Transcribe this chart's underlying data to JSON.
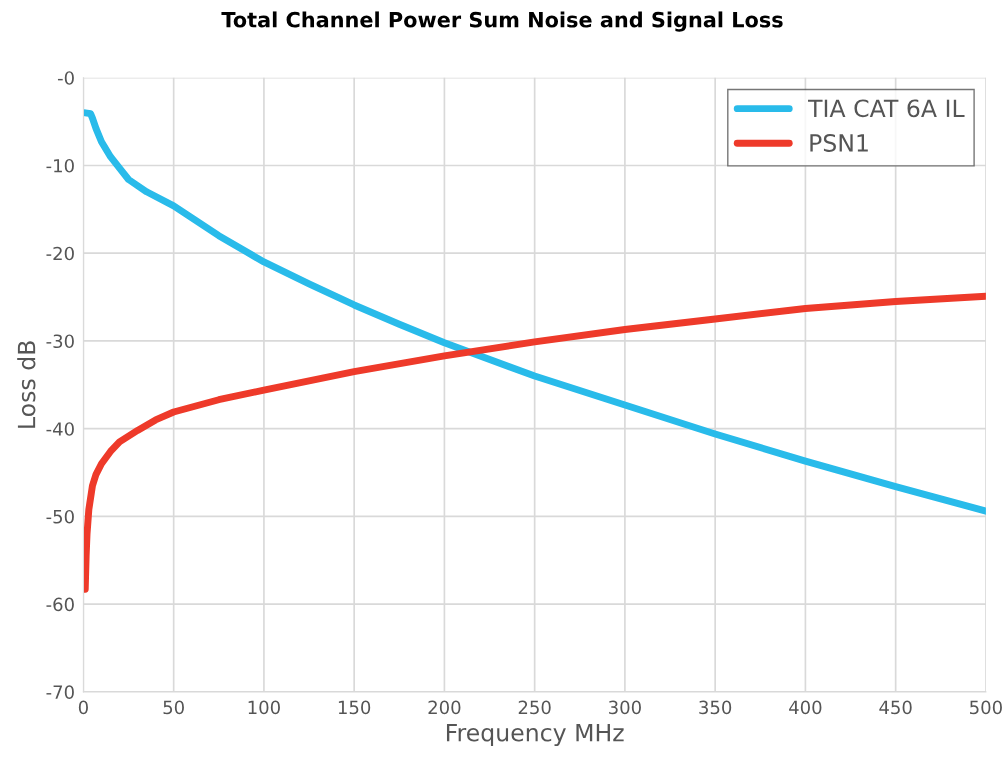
{
  "chart_data": {
    "type": "line",
    "title": "Total Channel Power Sum Noise and Signal Loss",
    "xlabel": "Frequency MHz",
    "ylabel": "Loss dB",
    "series": [
      {
        "name": "TIA CAT 6A IL",
        "color": "#29bbea",
        "x": [
          1,
          4,
          5,
          7,
          10,
          15,
          20,
          25,
          35,
          50,
          75,
          100,
          125,
          150,
          175,
          200,
          250,
          300,
          350,
          400,
          450,
          500
        ],
        "values": [
          -4.0,
          -4.1,
          -4.6,
          -5.8,
          -7.3,
          -9.0,
          -10.3,
          -11.6,
          -13.0,
          -14.6,
          -18.0,
          -21.0,
          -23.5,
          -25.9,
          -28.1,
          -30.2,
          -34.0,
          -37.3,
          -40.6,
          -43.7,
          -46.6,
          -49.4
        ]
      },
      {
        "name": "PSN1",
        "color": "#ee3a2a",
        "x": [
          1,
          1.5,
          2,
          3,
          5,
          7,
          10,
          15,
          20,
          30,
          40,
          50,
          75,
          100,
          150,
          200,
          250,
          300,
          350,
          400,
          450,
          500
        ],
        "values": [
          -58.3,
          -54.5,
          -52.0,
          -49.2,
          -46.5,
          -45.2,
          -44.0,
          -42.6,
          -41.5,
          -40.2,
          -39.0,
          -38.1,
          -36.7,
          -35.6,
          -33.5,
          -31.7,
          -30.1,
          -28.7,
          -27.5,
          -26.3,
          -25.5,
          -24.9
        ]
      }
    ],
    "xlim": [
      0,
      500
    ],
    "xticks": [
      0,
      50,
      100,
      150,
      200,
      250,
      300,
      350,
      400,
      450,
      500
    ],
    "ylim": [
      -70,
      0
    ],
    "yticks": [
      -70,
      -60,
      -50,
      -40,
      -30,
      -20,
      -10,
      {
        "value": 0,
        "label": "-0"
      }
    ],
    "grid": true,
    "legend": "top right",
    "marker": "none",
    "line_style": "solid"
  }
}
